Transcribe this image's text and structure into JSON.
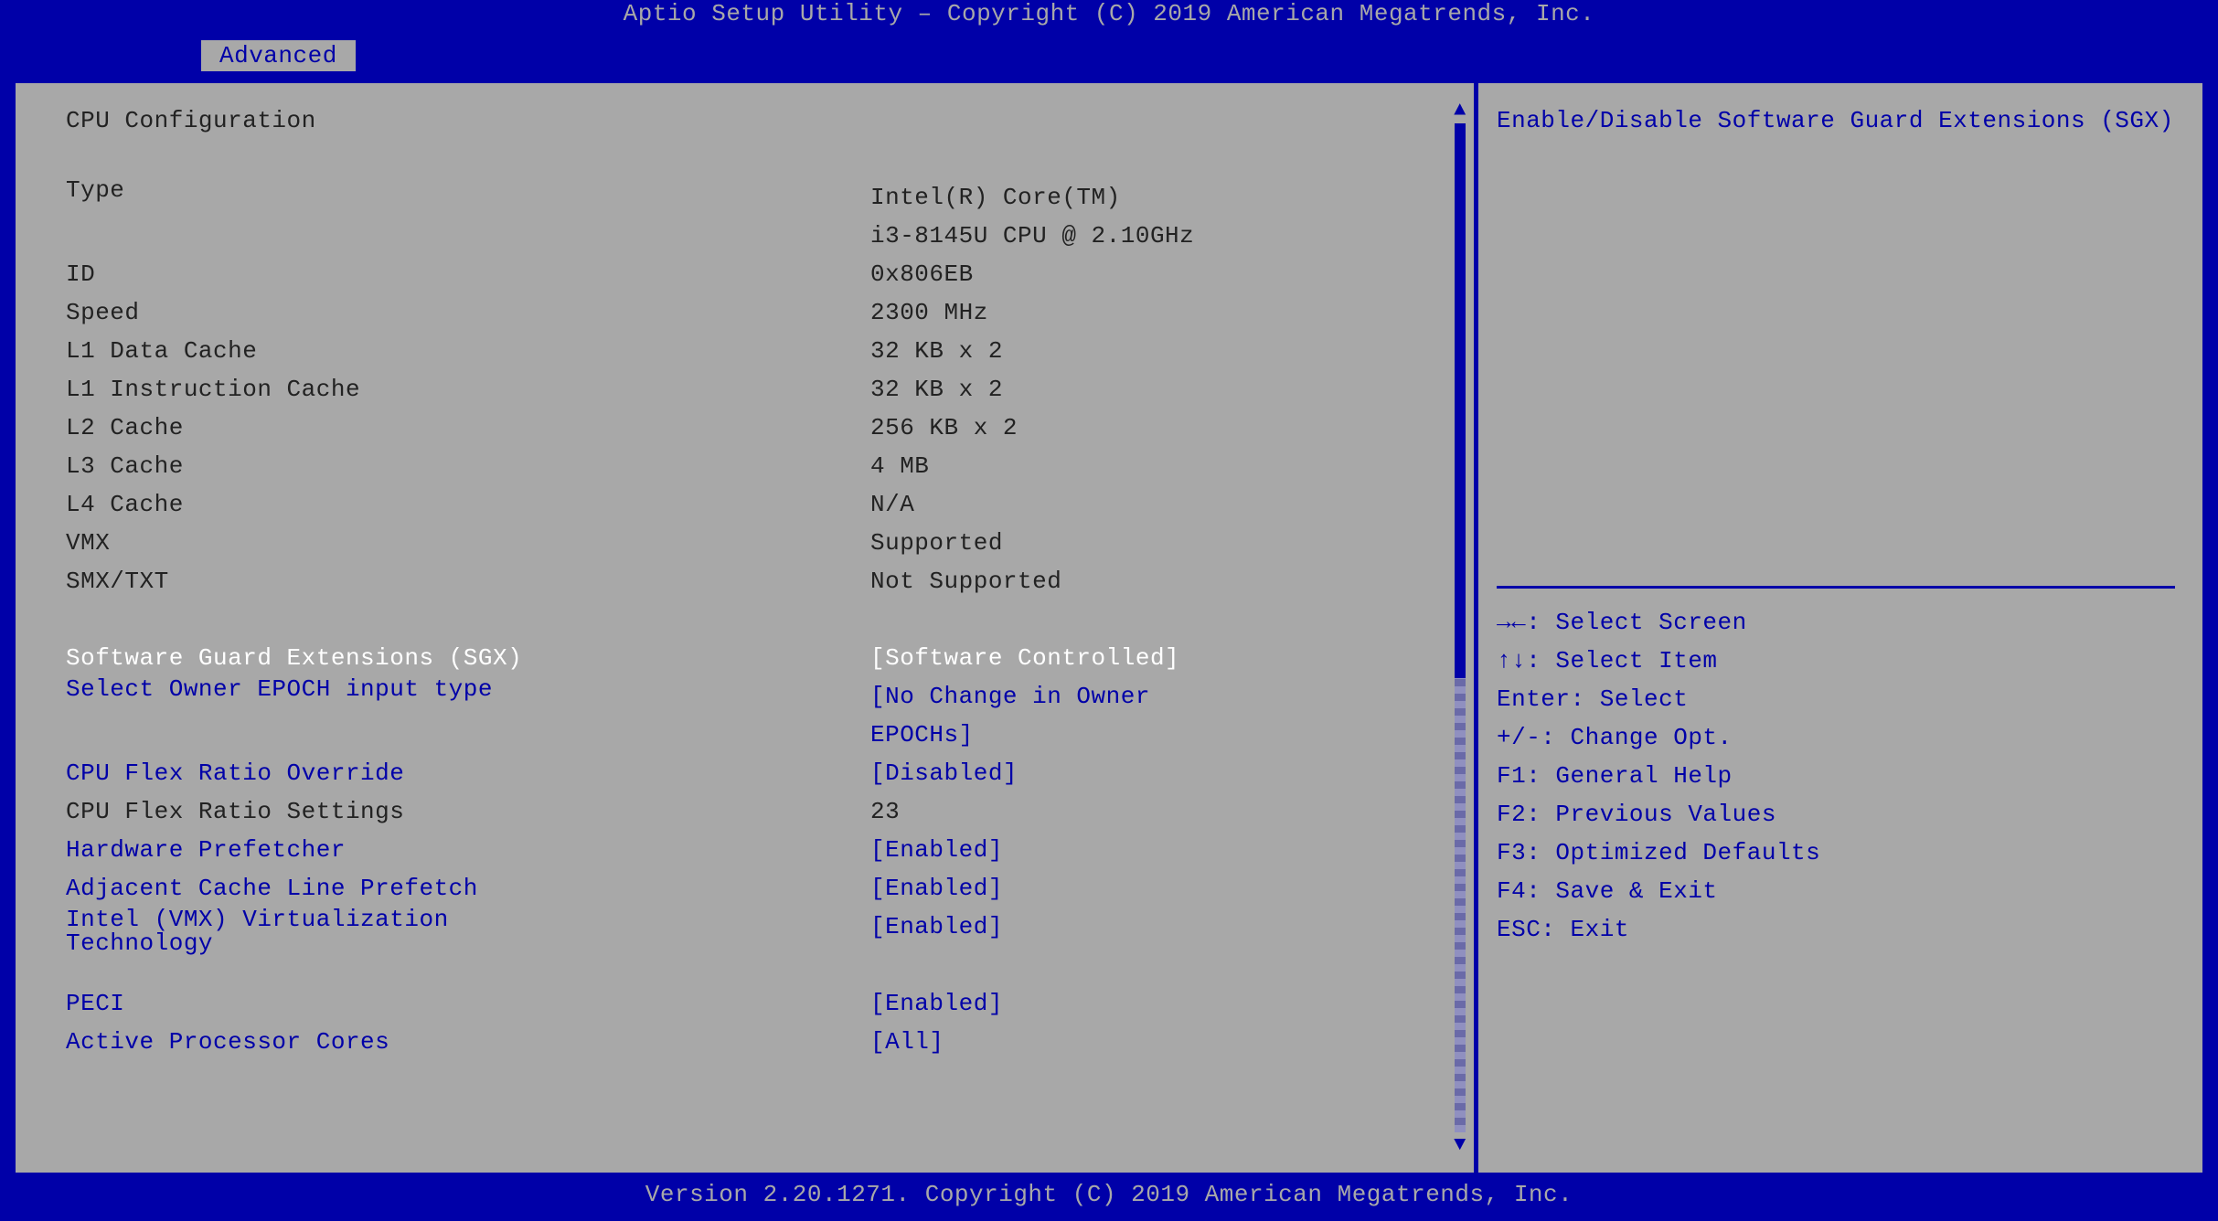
{
  "colors": {
    "bg": "#0000a8",
    "panel": "#a8a8a8",
    "text_dark": "#222222",
    "text_blue": "#0000a8",
    "text_white": "#ffffff",
    "text_muted": "#a8a8a8"
  },
  "title_bar": "Aptio Setup Utility – Copyright (C) 2019 American Megatrends, Inc.",
  "tab": "Advanced",
  "footer": "Version 2.20.1271. Copyright (C) 2019 American Megatrends, Inc.",
  "section_title": "CPU Configuration",
  "info_rows": [
    {
      "label": "Type",
      "value": "Intel(R) Core(TM)\ni3-8145U CPU @ 2.10GHz",
      "wrap": true
    },
    {
      "label": "ID",
      "value": "0x806EB"
    },
    {
      "label": "Speed",
      "value": "2300 MHz"
    },
    {
      "label": "L1 Data Cache",
      "value": "32 KB x 2"
    },
    {
      "label": "L1 Instruction Cache",
      "value": "32 KB x 2"
    },
    {
      "label": "L2 Cache",
      "value": "256 KB x 2"
    },
    {
      "label": "L3 Cache",
      "value": "4 MB"
    },
    {
      "label": "L4 Cache",
      "value": "N/A"
    },
    {
      "label": "VMX",
      "value": "Supported"
    },
    {
      "label": "SMX/TXT",
      "value": "Not Supported"
    }
  ],
  "setting_rows": [
    {
      "label": "Software Guard Extensions (SGX)",
      "value": "[Software Controlled]",
      "selected": true
    },
    {
      "label": "Select Owner EPOCH input type",
      "value": "[No Change in Owner\nEPOCHs]",
      "wrap": true
    },
    {
      "label": "CPU Flex Ratio Override",
      "value": "[Disabled]"
    },
    {
      "label": "CPU Flex Ratio Settings",
      "value": "23",
      "readonly": true
    },
    {
      "label": "Hardware Prefetcher",
      "value": "[Enabled]"
    },
    {
      "label": "Adjacent Cache Line Prefetch",
      "value": "[Enabled]"
    },
    {
      "label": "Intel (VMX) Virtualization\nTechnology",
      "value": "[Enabled]",
      "label_wrap": true
    },
    {
      "label": "PECI",
      "value": "[Enabled]"
    },
    {
      "label": "Active Processor Cores",
      "value": "[All]"
    }
  ],
  "help_text": "Enable/Disable Software Guard Extensions (SGX)",
  "key_hints": [
    "→←: Select Screen",
    "↑↓: Select Item",
    "Enter: Select",
    "+/-: Change Opt.",
    "F1: General Help",
    "F2: Previous Values",
    "F3: Optimized Defaults",
    "F4: Save & Exit",
    "ESC: Exit"
  ],
  "scrollbar": {
    "thumb_start_pct": 0,
    "thumb_height_pct": 55
  }
}
